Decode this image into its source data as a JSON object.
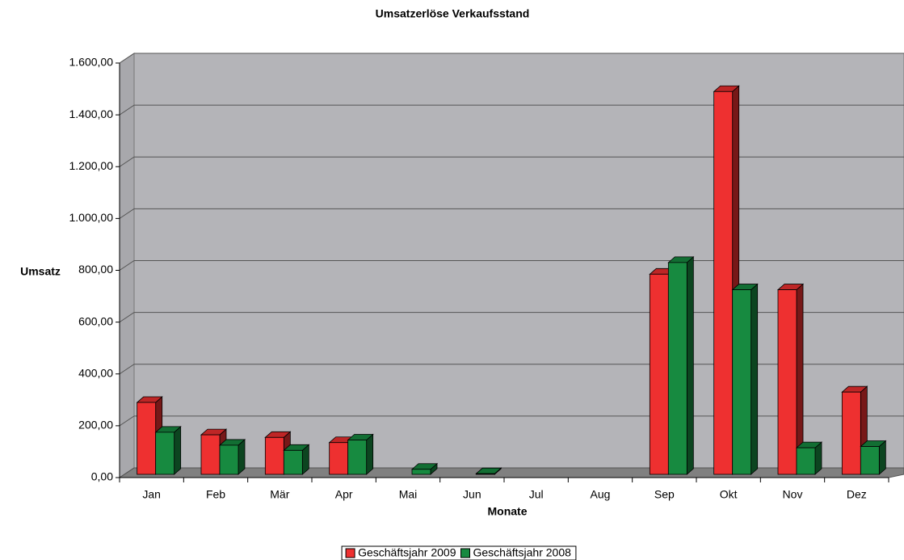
{
  "chart_data": {
    "type": "bar3d",
    "title": "Umsatzerlöse Verkaufsstand",
    "xlabel": "Monate",
    "ylabel": "Umsatz",
    "categories": [
      "Jan",
      "Feb",
      "Mär",
      "Apr",
      "Mai",
      "Jun",
      "Jul",
      "Aug",
      "Sep",
      "Okt",
      "Nov",
      "Dez"
    ],
    "series": [
      {
        "name": "Geschäftsjahr 2009",
        "color": "#ee3030",
        "values": [
          290,
          165,
          155,
          135,
          null,
          null,
          null,
          null,
          785,
          1490,
          725,
          330
        ]
      },
      {
        "name": "Geschäftsjahr 2008",
        "color": "#178a40",
        "values": [
          175,
          125,
          105,
          145,
          32,
          15,
          null,
          null,
          830,
          725,
          115,
          120
        ]
      }
    ],
    "ylim": [
      0,
      1600
    ],
    "yticks": [
      {
        "value": 0,
        "label": "0,00"
      },
      {
        "value": 200,
        "label": "200,00"
      },
      {
        "value": 400,
        "label": "400,00"
      },
      {
        "value": 600,
        "label": "600,00"
      },
      {
        "value": 800,
        "label": "800,00"
      },
      {
        "value": 1000,
        "label": "1.000,00"
      },
      {
        "value": 1200,
        "label": "1.200,00"
      },
      {
        "value": 1400,
        "label": "1.400,00"
      },
      {
        "value": 1600,
        "label": "1.600,00"
      }
    ],
    "grid": true
  }
}
